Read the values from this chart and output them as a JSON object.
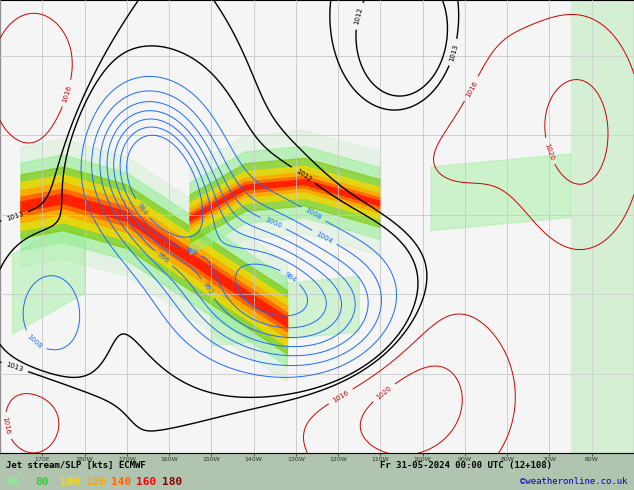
{
  "title_line1": "Jet stream/SLP [kts] ECMWF",
  "title_line2": "Fr 31-05-2024 00:00 UTC (12+108)",
  "credit": "©weatheronline.co.uk",
  "colorbar_values": [
    60,
    80,
    100,
    120,
    140,
    160,
    180
  ],
  "colorbar_colors": [
    "#90ee90",
    "#32cd32",
    "#ffd700",
    "#ffa500",
    "#ff6600",
    "#ff0000",
    "#8b0000"
  ],
  "figsize": [
    6.34,
    4.9
  ],
  "dpi": 100,
  "lon_min": 160,
  "lon_max": 310,
  "lat_min": 15,
  "lat_max": 72,
  "grid_lon_step": 10,
  "grid_lat_step": 10
}
